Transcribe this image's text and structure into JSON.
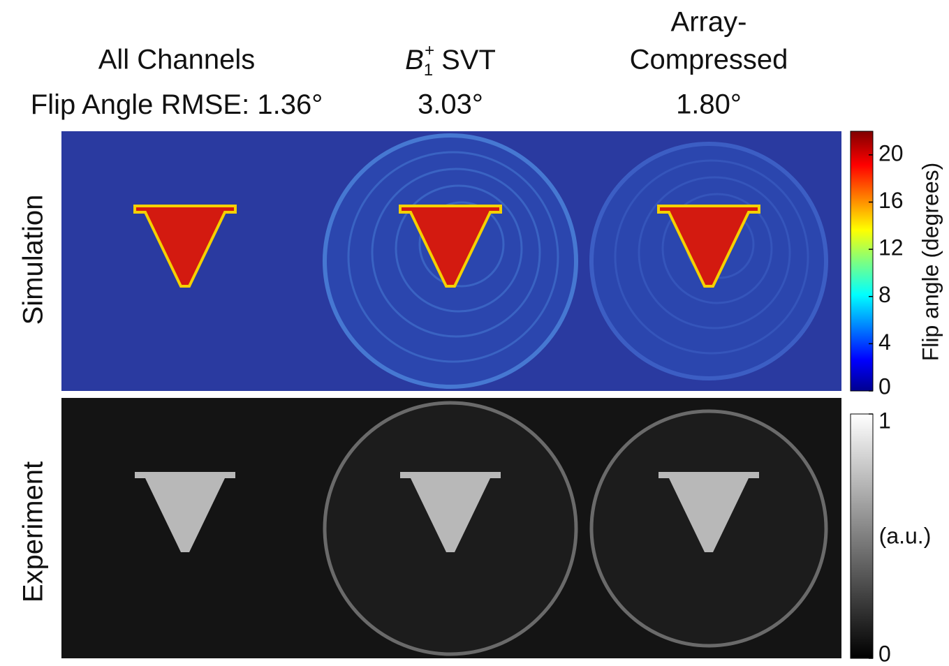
{
  "columns": [
    {
      "title": [
        "All Channels"
      ],
      "rmse": "1.36°"
    },
    {
      "title": [
        "SVT"
      ],
      "symbol": "B",
      "subscript": "1",
      "superscript": "+",
      "rmse": "3.03°"
    },
    {
      "title": [
        "Array-",
        "Compressed"
      ],
      "rmse": "1.80°"
    }
  ],
  "rmse_label": "Flip Angle RMSE:",
  "rows": [
    "Simulation",
    "Experiment"
  ],
  "colorbars": [
    {
      "label": "Flip angle (degrees)",
      "lim": [
        0,
        22
      ],
      "ticks": [
        0,
        4,
        8,
        12,
        16,
        20
      ]
    },
    {
      "label": "(a.u.)",
      "lim": [
        0,
        1
      ],
      "ticks": [
        0,
        1
      ]
    }
  ]
}
